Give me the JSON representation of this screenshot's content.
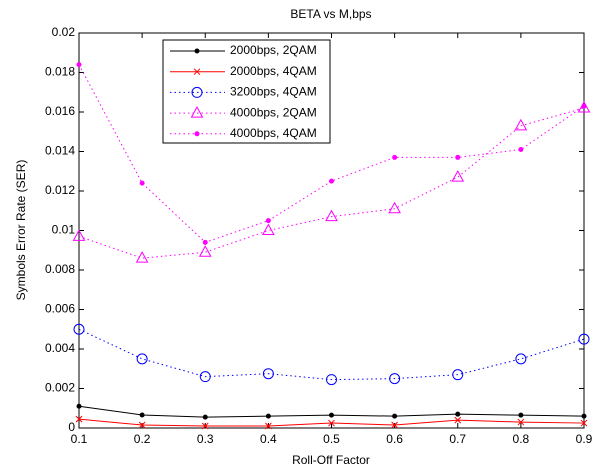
{
  "chart_data": {
    "type": "line",
    "title": "BETA vs M,bps",
    "x_label": "Roll-Off Factor",
    "y_label": "Symbols Error Rate (SER)",
    "x": [
      0.1,
      0.2,
      0.3,
      0.4,
      0.5,
      0.6,
      0.7,
      0.8,
      0.9
    ],
    "xlim": [
      0.1,
      0.9
    ],
    "xticks": [
      0.1,
      0.2,
      0.3,
      0.4,
      0.5,
      0.6,
      0.7,
      0.8,
      0.9
    ],
    "ylim": [
      0,
      0.02
    ],
    "yticks": [
      0,
      0.002,
      0.004,
      0.006,
      0.008,
      0.01,
      0.012,
      0.014,
      0.016,
      0.018,
      0.02
    ],
    "grid": false,
    "legend": "upper-left",
    "series": [
      {
        "name": "2000bps, 2QAM",
        "color": "#000000",
        "linestyle": "solid",
        "marker": "dot",
        "values": [
          0.0011,
          0.00066,
          0.00055,
          0.0006,
          0.00065,
          0.0006,
          0.0007,
          0.00065,
          0.0006
        ]
      },
      {
        "name": "2000bps, 4QAM",
        "color": "#ff0000",
        "linestyle": "solid",
        "marker": "x",
        "values": [
          0.00045,
          0.00015,
          0.0001,
          0.0001,
          0.00025,
          0.00015,
          0.0004,
          0.0003,
          0.00025
        ]
      },
      {
        "name": "3200bps, 4QAM",
        "color": "#0000ff",
        "linestyle": "dotted",
        "marker": "circle",
        "values": [
          0.005,
          0.0035,
          0.0026,
          0.00275,
          0.00245,
          0.0025,
          0.0027,
          0.0035,
          0.0045
        ]
      },
      {
        "name": "4000bps, 2QAM",
        "color": "#ff00ff",
        "linestyle": "dotted",
        "marker": "triangle",
        "values": [
          0.0097,
          0.0086,
          0.0089,
          0.01,
          0.0107,
          0.0111,
          0.0127,
          0.0153,
          0.0162
        ]
      },
      {
        "name": "4000bps, 4QAM",
        "color": "#ff00ff",
        "linestyle": "dotted",
        "marker": "dot",
        "values": [
          0.0184,
          0.0124,
          0.0094,
          0.0105,
          0.0125,
          0.0137,
          0.0137,
          0.0141,
          0.0163
        ]
      }
    ]
  }
}
